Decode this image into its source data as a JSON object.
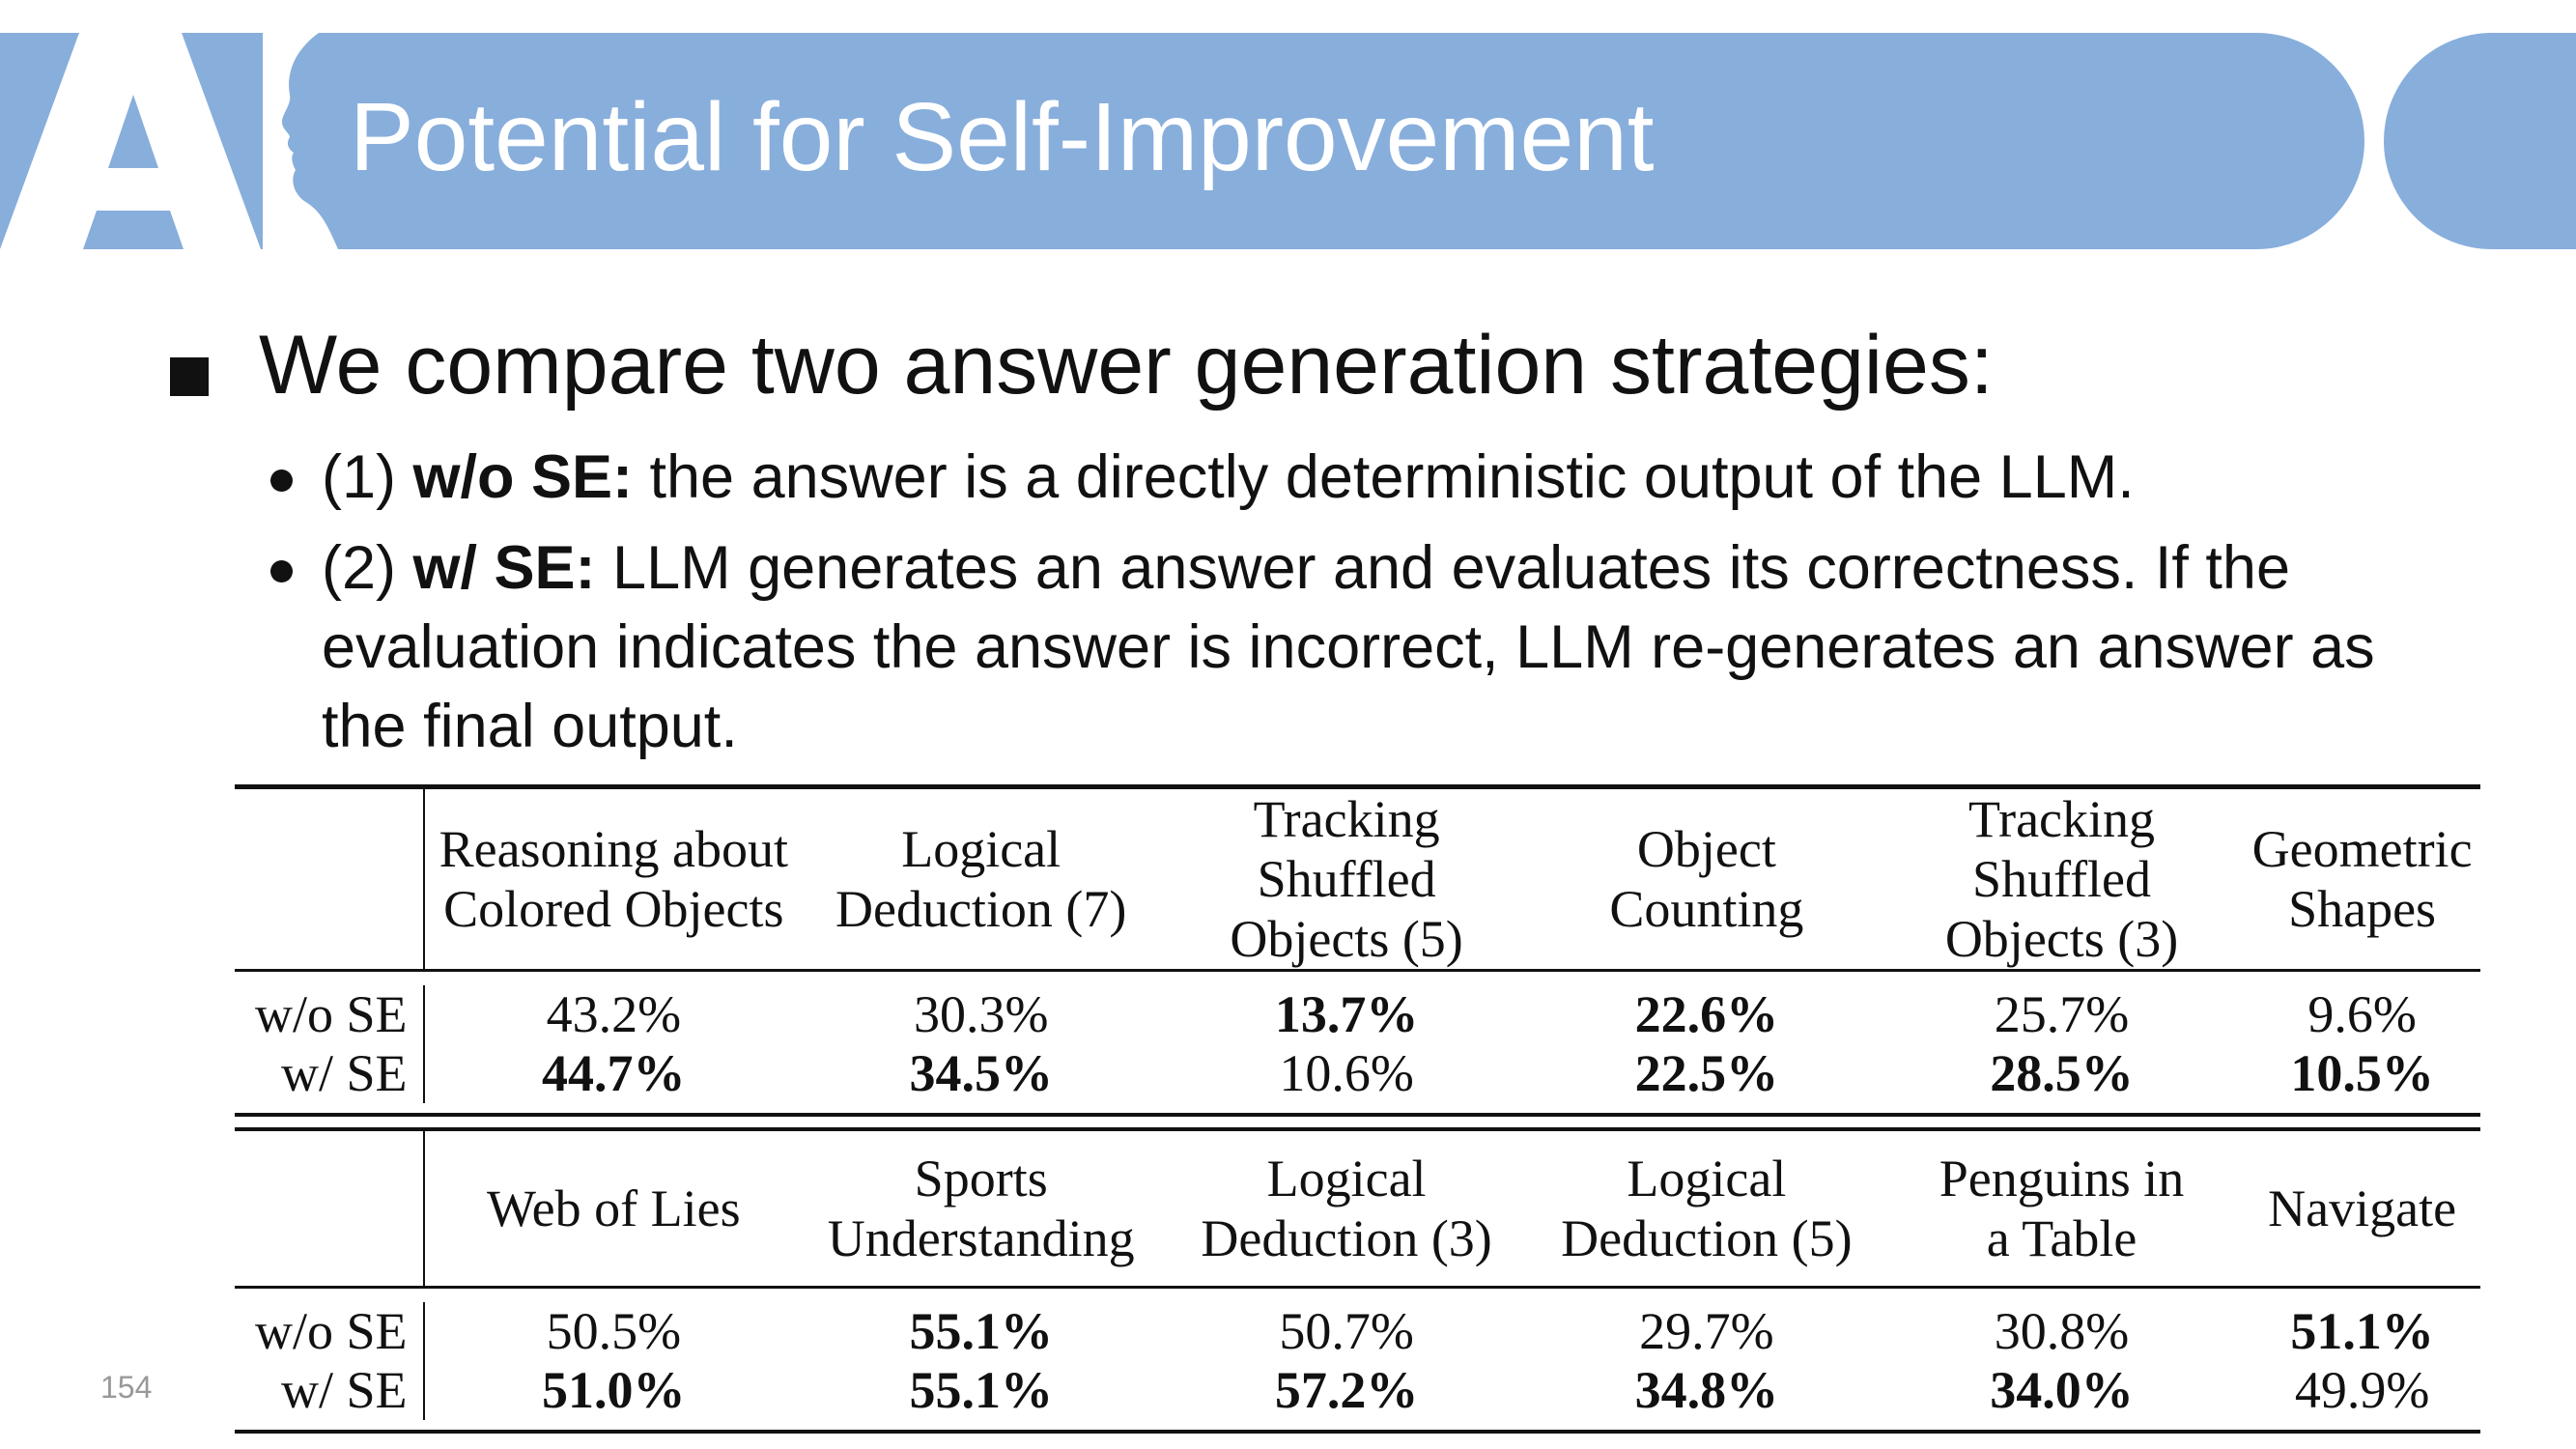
{
  "header": {
    "title": "Potential for Self-Improvement"
  },
  "bullets": {
    "main": "We compare two answer generation strategies:",
    "sub1": {
      "prefix": "(1) ",
      "strong": "w/o SE:",
      "rest": " the answer is a directly deterministic output of the LLM."
    },
    "sub2": {
      "prefix": "(2) ",
      "strong": "w/ SE:",
      "rest": " LLM generates an answer and evaluates its correctness. If the evaluation indicates the answer is incorrect, LLM re-generates an answer as the final output."
    }
  },
  "table": {
    "block1": {
      "headers": [
        [
          "Reasoning about",
          "Colored Objects"
        ],
        [
          "Logical",
          "Deduction (7)"
        ],
        [
          "Tracking Shuffled",
          "Objects (5)"
        ],
        [
          "Object",
          "Counting"
        ],
        [
          "Tracking Shuffled",
          "Objects (3)"
        ],
        [
          "Geometric",
          "Shapes"
        ]
      ],
      "rows": [
        {
          "label": "w/o SE",
          "values": [
            "43.2%",
            "30.3%",
            "13.7%",
            "22.6%",
            "25.7%",
            "9.6%"
          ],
          "bold": [
            false,
            false,
            true,
            true,
            false,
            false
          ]
        },
        {
          "label": "w/ SE",
          "values": [
            "44.7%",
            "34.5%",
            "10.6%",
            "22.5%",
            "28.5%",
            "10.5%"
          ],
          "bold": [
            true,
            true,
            false,
            true,
            true,
            true
          ]
        }
      ]
    },
    "block2": {
      "headers": [
        [
          "Web of Lies"
        ],
        [
          "Sports",
          "Understanding"
        ],
        [
          "Logical",
          "Deduction (3)"
        ],
        [
          "Logical",
          "Deduction (5)"
        ],
        [
          "Penguins in",
          "a Table"
        ],
        [
          "Navigate"
        ]
      ],
      "rows": [
        {
          "label": "w/o SE",
          "values": [
            "50.5%",
            "55.1%",
            "50.7%",
            "29.7%",
            "30.8%",
            "51.1%"
          ],
          "bold": [
            false,
            true,
            false,
            false,
            false,
            true
          ]
        },
        {
          "label": "w/ SE",
          "values": [
            "51.0%",
            "55.1%",
            "57.2%",
            "34.8%",
            "34.0%",
            "49.9%"
          ],
          "bold": [
            true,
            true,
            true,
            true,
            true,
            false
          ]
        }
      ]
    }
  },
  "page_number": "154"
}
